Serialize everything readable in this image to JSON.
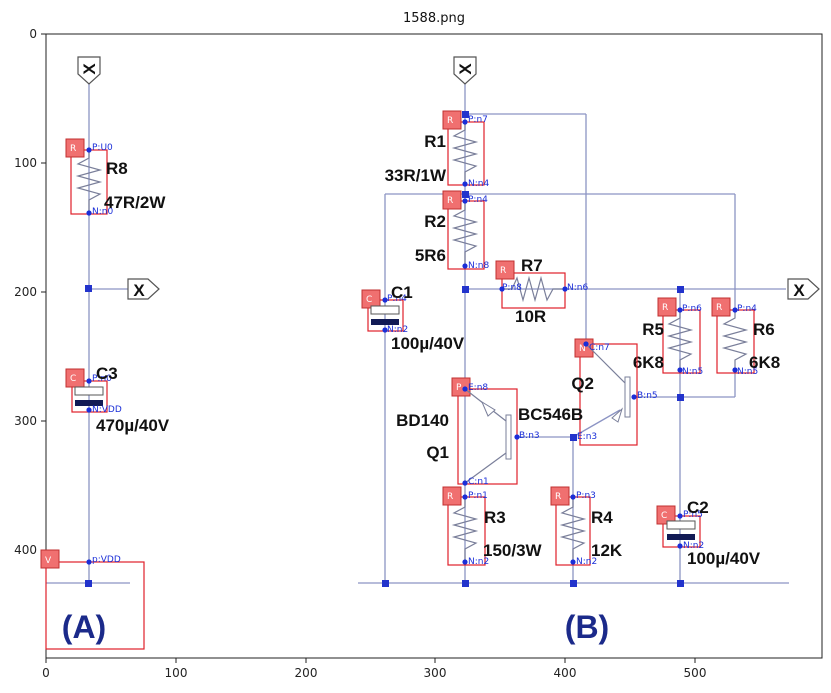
{
  "title": "1588.png",
  "x_ticks": [
    "0",
    "100",
    "200",
    "300",
    "400",
    "500"
  ],
  "y_ticks": [
    "0",
    "100",
    "200",
    "300",
    "400"
  ],
  "terminals": {
    "x_label": "X"
  },
  "sections": {
    "a": "(A)",
    "b": "(B)"
  },
  "components": {
    "r8": {
      "name": "R8",
      "value": "47R/2W",
      "tag": "R",
      "pin_p": "P:U0",
      "pin_n": "N:n0"
    },
    "c3": {
      "name": "C3",
      "value": "470µ/40V",
      "tag": "C",
      "pin_p": "P:n0",
      "pin_n": "N:VDD"
    },
    "v": {
      "tag": "V",
      "pin_p": "p:VDD"
    },
    "r1": {
      "name": "R1",
      "value": "33R/1W",
      "tag": "R",
      "pin_p": "P:n7",
      "pin_n": "N:n4"
    },
    "r2": {
      "name": "R2",
      "value": "5R6",
      "tag": "R",
      "pin_p": "P:n4",
      "pin_n": "N:n8"
    },
    "r7": {
      "name": "R7",
      "value": "10R",
      "tag": "R",
      "pin_p": "P:n8",
      "pin_n": "N:n6"
    },
    "c1": {
      "name": "C1",
      "value": "100µ/40V",
      "tag": "C",
      "pin_p": "P:n4",
      "pin_n": "N:n2"
    },
    "r5": {
      "name": "R5",
      "value": "6K8",
      "tag": "R",
      "pin_p": "P:n6",
      "pin_n": "N:n5"
    },
    "r6": {
      "name": "R6",
      "value": "6K8",
      "tag": "R",
      "pin_p": "P:n4",
      "pin_n": "N:n5"
    },
    "q2": {
      "name": "Q2",
      "value": "BC546B",
      "tag": "N",
      "pin_c": "C:n7",
      "pin_b": "B:n5",
      "pin_e": "E:n3"
    },
    "q1": {
      "name": "Q1",
      "value": "BD140",
      "tag": "P",
      "pin_e": "E:n8",
      "pin_b": "B:n3",
      "pin_c": "C:n1"
    },
    "r3": {
      "name": "R3",
      "value": "150/3W",
      "tag": "R",
      "pin_p": "P:n1",
      "pin_n": "N:n2"
    },
    "r4": {
      "name": "R4",
      "value": "12K",
      "tag": "R",
      "pin_p": "P:n3",
      "pin_n": "N:n2"
    },
    "c2": {
      "name": "C2",
      "value": "100µ/40V",
      "tag": "C",
      "pin_p": "P:n5",
      "pin_n": "N:n2"
    }
  }
}
